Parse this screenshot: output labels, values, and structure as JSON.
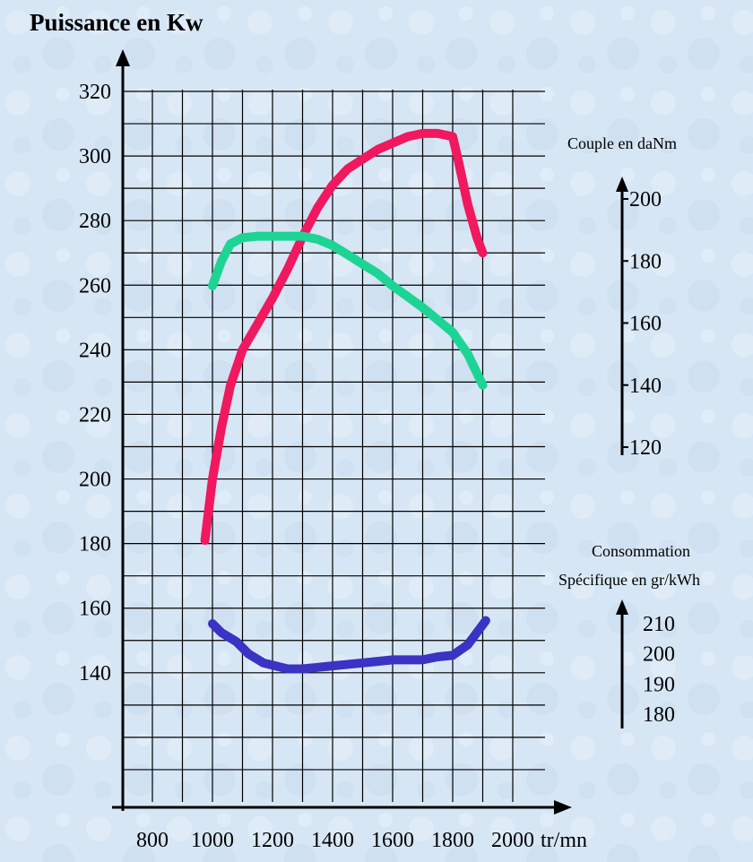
{
  "chart_data": {
    "type": "line",
    "title": "Puissance en Kw",
    "xlabel": "tr/mn",
    "x_ticks": [
      800,
      1000,
      1200,
      1400,
      1600,
      1800,
      2000
    ],
    "x_range": [
      700,
      2000
    ],
    "left_axis": {
      "label": "Puissance en Kw",
      "range": [
        100,
        320
      ],
      "ticks": [
        140,
        160,
        180,
        200,
        220,
        240,
        260,
        280,
        300,
        320
      ]
    },
    "torque_axis": {
      "label": "Couple en daNm",
      "range": [
        120,
        200
      ],
      "ticks": [
        120,
        140,
        160,
        180,
        200
      ]
    },
    "consumption_axis": {
      "label_line1": "Consommation",
      "label_line2": "Spécifique en gr/kWh",
      "range": [
        180,
        210
      ],
      "ticks": [
        180,
        190,
        200,
        210
      ]
    },
    "grid": true,
    "series": [
      {
        "axis": "left",
        "color": "#f0185e",
        "x": [
          975,
          1000,
          1030,
          1060,
          1100,
          1150,
          1200,
          1250,
          1300,
          1350,
          1400,
          1450,
          1500,
          1550,
          1600,
          1650,
          1700,
          1750,
          1800,
          1820,
          1850,
          1880,
          1900
        ],
        "y": [
          181,
          200,
          216,
          229,
          240,
          248,
          256,
          265,
          275,
          284,
          291,
          296,
          299,
          302,
          304,
          306,
          307,
          307,
          306,
          298,
          285,
          275,
          270
        ]
      },
      {
        "axis": "torque",
        "color": "#1ed495",
        "x": [
          1000,
          1030,
          1060,
          1100,
          1150,
          1200,
          1300,
          1350,
          1400,
          1450,
          1500,
          1550,
          1600,
          1650,
          1700,
          1750,
          1800,
          1850,
          1900
        ],
        "y": [
          172,
          180,
          185.5,
          187.5,
          188,
          188,
          188,
          187,
          185,
          182,
          179,
          176,
          172,
          168.5,
          165,
          161,
          157,
          150,
          140
        ]
      },
      {
        "axis": "consumption",
        "color": "#3a33c4",
        "x": [
          1000,
          1030,
          1080,
          1120,
          1170,
          1250,
          1300,
          1350,
          1400,
          1500,
          1550,
          1600,
          1650,
          1700,
          1750,
          1800,
          1850,
          1910
        ],
        "y": [
          210,
          207,
          204,
          200,
          197,
          195,
          195,
          195.5,
          196,
          197,
          197.5,
          198,
          198,
          198,
          199,
          199.5,
          203,
          211
        ]
      }
    ]
  }
}
